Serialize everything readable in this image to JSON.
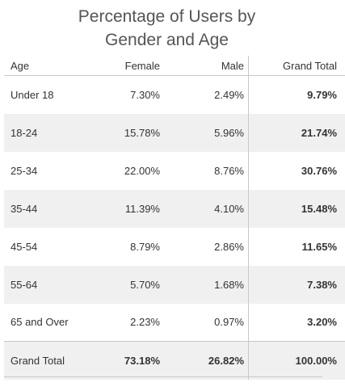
{
  "chart_data": {
    "type": "table",
    "title_lines": [
      "Percentage of Users by",
      "Gender and Age"
    ],
    "columns": [
      "Age",
      "Female",
      "Male",
      "Grand Total"
    ],
    "rows": [
      {
        "age": "Under 18",
        "female": "7.30%",
        "male": "2.49%",
        "total": "9.79%"
      },
      {
        "age": "18-24",
        "female": "15.78%",
        "male": "5.96%",
        "total": "21.74%"
      },
      {
        "age": "25-34",
        "female": "22.00%",
        "male": "8.76%",
        "total": "30.76%"
      },
      {
        "age": "35-44",
        "female": "11.39%",
        "male": "4.10%",
        "total": "15.48%"
      },
      {
        "age": "45-54",
        "female": "8.79%",
        "male": "2.86%",
        "total": "11.65%"
      },
      {
        "age": "55-64",
        "female": "5.70%",
        "male": "1.68%",
        "total": "7.38%"
      },
      {
        "age": "65 and Over",
        "female": "2.23%",
        "male": "0.97%",
        "total": "3.20%"
      }
    ],
    "grand_total": {
      "age": "Grand Total",
      "female": "73.18%",
      "male": "26.82%",
      "total": "100.00%"
    },
    "banding_color": "#f0f0f0",
    "rule_color": "#c8c8c8"
  }
}
